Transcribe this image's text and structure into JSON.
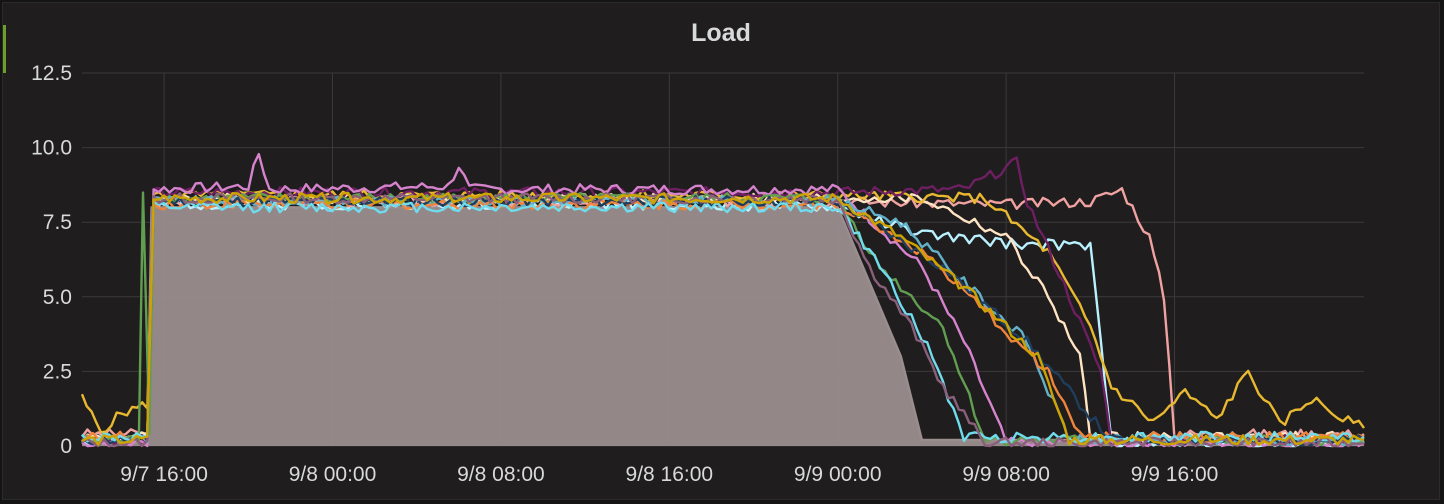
{
  "panel": {
    "title": "Load"
  },
  "chart_data": {
    "type": "area",
    "title": "Load",
    "xlabel": "",
    "ylabel": "",
    "ylim": [
      0,
      12.5
    ],
    "y_ticks": [
      "0",
      "2.5",
      "5.0",
      "7.5",
      "10.0",
      "12.5"
    ],
    "x_ticks": [
      "9/7 16:00",
      "9/8 00:00",
      "9/8 08:00",
      "9/8 16:00",
      "9/9 00:00",
      "9/9 08:00",
      "9/9 16:00"
    ],
    "x_tick_hours": [
      16,
      24,
      32,
      40,
      48,
      56,
      64
    ],
    "xlim_hours": [
      12.1,
      73.0
    ],
    "grid": true,
    "legend": "none",
    "series_count_note": "many overlapping host series",
    "series": [
      {
        "color": "#9a8d8d",
        "fill": true,
        "points": [
          [
            12.1,
            0.1
          ],
          [
            15.2,
            0.1
          ],
          [
            15.4,
            8.0
          ],
          [
            48.0,
            8.0
          ],
          [
            51.0,
            3.0
          ],
          [
            52.0,
            0.2
          ],
          [
            73.0,
            0.2
          ]
        ]
      },
      {
        "color": "#b9f1ff",
        "fill": false,
        "points": [
          [
            12.1,
            0.2
          ],
          [
            15.2,
            0.2
          ],
          [
            15.5,
            8.1
          ],
          [
            28.0,
            8.1
          ],
          [
            40.0,
            8.1
          ],
          [
            48.0,
            8.0
          ],
          [
            52.0,
            7.1
          ],
          [
            56.0,
            6.8
          ],
          [
            60.0,
            6.7
          ],
          [
            61.0,
            0.1
          ],
          [
            73.0,
            0.1
          ]
        ]
      },
      {
        "color": "#f0a2a2",
        "fill": false,
        "points": [
          [
            12.1,
            0.4
          ],
          [
            15.2,
            0.4
          ],
          [
            15.5,
            8.2
          ],
          [
            48.0,
            8.2
          ],
          [
            56.0,
            8.1
          ],
          [
            60.0,
            8.2
          ],
          [
            61.5,
            8.6
          ],
          [
            62.0,
            8.0
          ],
          [
            62.8,
            7.0
          ],
          [
            63.5,
            5.0
          ],
          [
            64.0,
            0.4
          ],
          [
            73.0,
            0.4
          ]
        ]
      },
      {
        "color": "#ffe4c4",
        "fill": false,
        "points": [
          [
            12.1,
            0.3
          ],
          [
            15.2,
            0.3
          ],
          [
            15.5,
            8.3
          ],
          [
            48.0,
            8.3
          ],
          [
            52.0,
            8.3
          ],
          [
            56.0,
            7.0
          ],
          [
            58.0,
            5.0
          ],
          [
            59.5,
            3.0
          ],
          [
            60.0,
            0.3
          ],
          [
            73.0,
            0.3
          ]
        ]
      },
      {
        "color": "#e8b930",
        "fill": false,
        "points": [
          [
            12.1,
            1.6
          ],
          [
            13.0,
            0.5
          ],
          [
            14.0,
            1.1
          ],
          [
            15.2,
            1.4
          ],
          [
            15.5,
            8.4
          ],
          [
            48.0,
            8.4
          ],
          [
            55.0,
            8.3
          ],
          [
            58.0,
            6.5
          ],
          [
            60.0,
            4.0
          ],
          [
            61.0,
            2.0
          ],
          [
            63.0,
            0.8
          ],
          [
            64.5,
            1.8
          ],
          [
            66.0,
            0.9
          ],
          [
            67.5,
            2.5
          ],
          [
            69.0,
            0.7
          ],
          [
            70.5,
            1.6
          ],
          [
            72.0,
            0.9
          ],
          [
            73.0,
            0.6
          ]
        ]
      },
      {
        "color": "#6d1f62",
        "fill": false,
        "points": [
          [
            12.1,
            0.2
          ],
          [
            15.2,
            0.2
          ],
          [
            15.5,
            8.5
          ],
          [
            48.0,
            8.5
          ],
          [
            54.0,
            8.6
          ],
          [
            56.5,
            9.5
          ],
          [
            57.0,
            8.2
          ],
          [
            59.0,
            5.0
          ],
          [
            60.5,
            2.5
          ],
          [
            61.0,
            0.2
          ],
          [
            73.0,
            0.2
          ]
        ]
      },
      {
        "color": "#d683ce",
        "fill": false,
        "points": [
          [
            12.1,
            0.1
          ],
          [
            15.2,
            0.1
          ],
          [
            15.5,
            8.6
          ],
          [
            20.0,
            8.7
          ],
          [
            20.5,
            9.8
          ],
          [
            21.0,
            8.6
          ],
          [
            29.5,
            8.7
          ],
          [
            30.0,
            9.4
          ],
          [
            30.5,
            8.6
          ],
          [
            48.0,
            8.6
          ],
          [
            52.0,
            6.0
          ],
          [
            54.0,
            3.5
          ],
          [
            56.0,
            0.1
          ],
          [
            73.0,
            0.1
          ]
        ]
      },
      {
        "color": "#629e51",
        "fill": false,
        "points": [
          [
            12.1,
            0.2
          ],
          [
            14.8,
            0.2
          ],
          [
            15.0,
            8.6
          ],
          [
            15.3,
            0.5
          ],
          [
            15.5,
            8.3
          ],
          [
            48.0,
            8.3
          ],
          [
            50.0,
            6.0
          ],
          [
            53.0,
            4.0
          ],
          [
            55.0,
            0.2
          ],
          [
            73.0,
            0.2
          ]
        ]
      },
      {
        "color": "#64b0c8",
        "fill": false,
        "points": [
          [
            12.1,
            0.2
          ],
          [
            15.2,
            0.2
          ],
          [
            15.5,
            8.2
          ],
          [
            48.0,
            8.2
          ],
          [
            51.0,
            7.5
          ],
          [
            54.0,
            5.5
          ],
          [
            57.0,
            3.5
          ],
          [
            59.0,
            0.2
          ],
          [
            73.0,
            0.2
          ]
        ]
      },
      {
        "color": "#ef843c",
        "fill": false,
        "points": [
          [
            12.1,
            0.3
          ],
          [
            15.2,
            0.3
          ],
          [
            15.5,
            8.1
          ],
          [
            48.0,
            8.1
          ],
          [
            52.0,
            6.5
          ],
          [
            55.0,
            4.5
          ],
          [
            58.0,
            2.5
          ],
          [
            59.5,
            0.3
          ],
          [
            73.0,
            0.3
          ]
        ]
      },
      {
        "color": "#1f3d5c",
        "fill": false,
        "points": [
          [
            12.1,
            0.2
          ],
          [
            15.2,
            0.2
          ],
          [
            15.5,
            8.2
          ],
          [
            48.0,
            8.2
          ],
          [
            53.0,
            6.0
          ],
          [
            57.0,
            3.5
          ],
          [
            60.0,
            1.0
          ],
          [
            61.0,
            0.2
          ],
          [
            73.0,
            0.2
          ]
        ]
      },
      {
        "color": "#70dbed",
        "fill": false,
        "points": [
          [
            12.1,
            0.3
          ],
          [
            15.2,
            0.3
          ],
          [
            15.5,
            8.0
          ],
          [
            48.0,
            8.0
          ],
          [
            50.5,
            5.5
          ],
          [
            52.5,
            3.0
          ],
          [
            54.0,
            0.3
          ],
          [
            73.0,
            0.3
          ]
        ]
      },
      {
        "color": "#8a5f7a",
        "fill": false,
        "points": [
          [
            12.1,
            0.1
          ],
          [
            15.2,
            0.1
          ],
          [
            15.5,
            8.3
          ],
          [
            48.0,
            8.3
          ],
          [
            49.5,
            6.0
          ],
          [
            51.5,
            4.0
          ],
          [
            53.0,
            2.0
          ],
          [
            55.0,
            0.1
          ],
          [
            73.0,
            0.1
          ]
        ]
      },
      {
        "color": "#cca300",
        "fill": false,
        "points": [
          [
            12.1,
            0.2
          ],
          [
            15.2,
            0.2
          ],
          [
            15.5,
            8.3
          ],
          [
            48.0,
            8.3
          ],
          [
            51.0,
            7.0
          ],
          [
            54.5,
            5.0
          ],
          [
            57.5,
            3.0
          ],
          [
            59.0,
            0.2
          ],
          [
            73.0,
            0.2
          ]
        ]
      }
    ]
  }
}
